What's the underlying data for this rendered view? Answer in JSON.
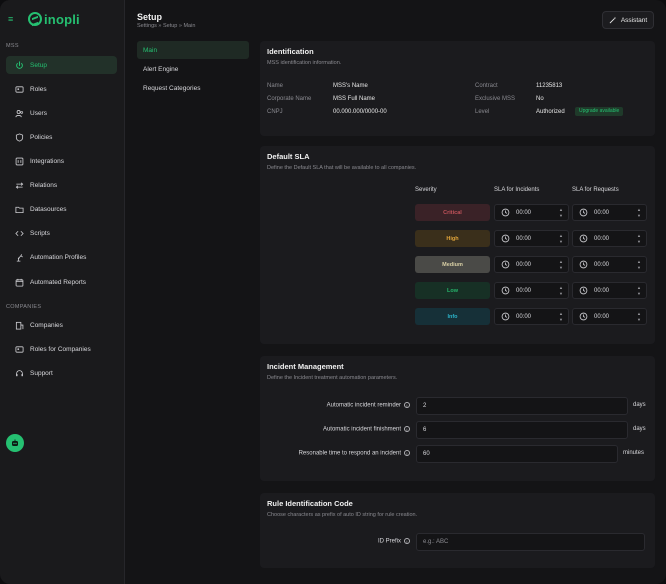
{
  "app": {
    "logo": "inopli"
  },
  "colors": {
    "accent": "#25c071",
    "background": "#141416",
    "card": "#1b1b1e"
  },
  "sidebar": {
    "section_mss": "MSS",
    "section_companies": "COMPANIES",
    "items": [
      {
        "label": "Setup",
        "icon": "power-icon"
      },
      {
        "label": "Roles",
        "icon": "roles-icon"
      },
      {
        "label": "Users",
        "icon": "users-icon"
      },
      {
        "label": "Policies",
        "icon": "shield-icon"
      },
      {
        "label": "Integrations",
        "icon": "integrations-icon"
      },
      {
        "label": "Relations",
        "icon": "arrows-icon"
      },
      {
        "label": "Datasources",
        "icon": "folder-icon"
      },
      {
        "label": "Scripts",
        "icon": "code-icon"
      },
      {
        "label": "Automation Profiles",
        "icon": "robot-arm-icon"
      },
      {
        "label": "Automated Reports",
        "icon": "calendar-icon"
      }
    ],
    "company_items": [
      {
        "label": "Companies",
        "icon": "building-icon"
      },
      {
        "label": "Roles for Companies",
        "icon": "roles-icon"
      },
      {
        "label": "Support",
        "icon": "headset-icon"
      }
    ]
  },
  "header": {
    "title": "Setup",
    "breadcrumb": "Settings » Setup » Main",
    "assistant_label": "Assistant"
  },
  "subnav": {
    "items": [
      "Main",
      "Alert Engine",
      "Request Categories"
    ]
  },
  "identification": {
    "title": "Identification",
    "description": "MSS identification information.",
    "name_label": "Name",
    "name_value": "MSS's Name",
    "corporate_label": "Corporate Name",
    "corporate_value": "MSS Full Name",
    "cnpj_label": "CNPJ",
    "cnpj_value": "00.000.000/0000-00",
    "contract_label": "Contract",
    "contract_value": "11235813",
    "exclusive_label": "Exclusive MSS",
    "exclusive_value": "No",
    "level_label": "Level",
    "level_value": "Authorized",
    "upgrade_badge": "Upgrade available"
  },
  "sla": {
    "title": "Default SLA",
    "description": "Define the Default SLA that will be available to all companies.",
    "col_severity": "Severity",
    "col_incidents": "SLA for Incidents",
    "col_requests": "SLA for Requests",
    "rows": [
      {
        "severity": "Critical",
        "incidents": "00:00",
        "requests": "00:00",
        "color": "#c0525a",
        "bg": "#3a2227"
      },
      {
        "severity": "High",
        "incidents": "00:00",
        "requests": "00:00",
        "color": "#e0a43a",
        "bg": "#3a2f1b"
      },
      {
        "severity": "Medium",
        "incidents": "00:00",
        "requests": "00:00",
        "color": "#d8cfa5",
        "bg": "#4a4a47"
      },
      {
        "severity": "Low",
        "incidents": "00:00",
        "requests": "00:00",
        "color": "#27b56c",
        "bg": "#173025"
      },
      {
        "severity": "Info",
        "incidents": "00:00",
        "requests": "00:00",
        "color": "#2bb3c9",
        "bg": "#163038"
      }
    ]
  },
  "incident": {
    "title": "Incident Management",
    "description": "Define the Incident treatment automation parameters.",
    "reminder_label": "Automatic incident reminder",
    "reminder_value": "2",
    "reminder_unit": "days",
    "finish_label": "Automatic incident finishment",
    "finish_value": "6",
    "finish_unit": "days",
    "respond_label": "Resonable time to respond an incident",
    "respond_value": "60",
    "respond_unit": "minutes"
  },
  "rule": {
    "title": "Rule Identification Code",
    "description": "Choose characters as prefix of auto ID string for rule creation.",
    "prefix_label": "ID Prefix",
    "prefix_placeholder": "e.g.: ABC"
  }
}
